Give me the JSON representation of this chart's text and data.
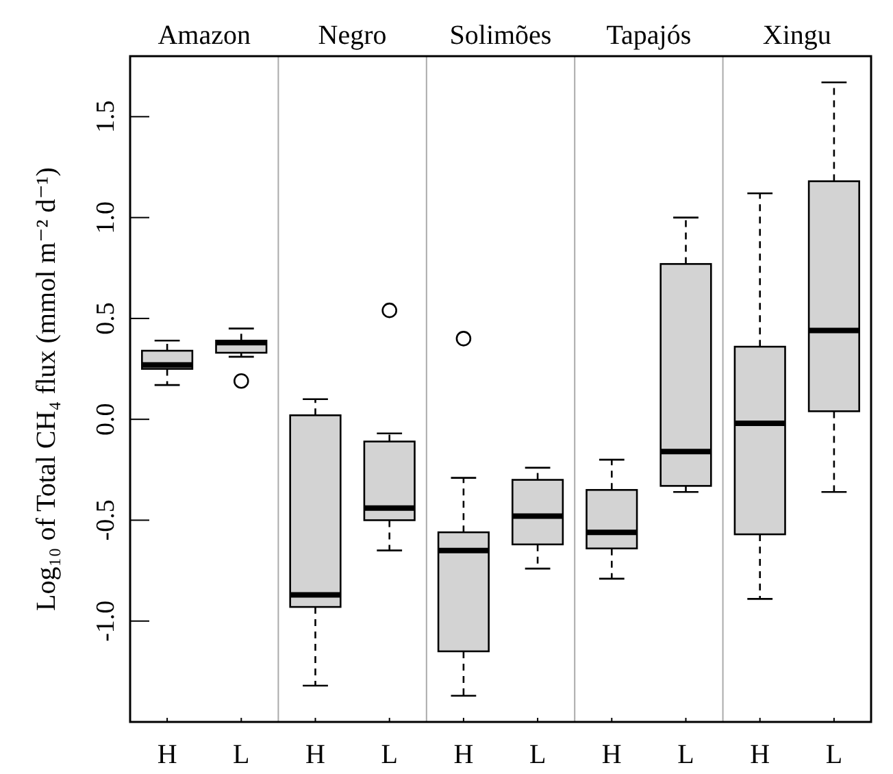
{
  "chart_data": {
    "type": "box",
    "ylabel": "Log₁₀ of Total CH₄ flux (mmol m⁻² d⁻¹)",
    "categories": [
      "H",
      "L",
      "H",
      "L",
      "H",
      "L",
      "H",
      "L",
      "H",
      "L"
    ],
    "annotations": [
      "Amazon",
      "Negro",
      "Solimões",
      "Tapajós",
      "Xingu"
    ],
    "color": "#d3d3d3",
    "ylim": [
      -1.5,
      1.8
    ],
    "yticks": [
      {
        "value": -1,
        "label": "-1.0"
      },
      {
        "value": -0.5,
        "label": "-0.5"
      },
      {
        "value": 0,
        "label": "0.0"
      },
      {
        "value": 0.5,
        "label": "0.5"
      },
      {
        "value": 1,
        "label": "1.0"
      },
      {
        "value": 1.5,
        "label": "1.5"
      }
    ],
    "grid": false,
    "boxes": [
      {
        "low": 0.17,
        "q1": 0.25,
        "median": 0.27,
        "q3": 0.34,
        "high": 0.39
      },
      {
        "low": 0.31,
        "q1": 0.33,
        "median": 0.38,
        "q3": 0.39,
        "high": 0.45,
        "outliers": [
          0.19
        ]
      },
      {
        "low": -1.32,
        "q1": -0.93,
        "median": -0.87,
        "q3": 0.02,
        "high": 0.1
      },
      {
        "low": -0.65,
        "q1": -0.5,
        "median": -0.44,
        "q3": -0.11,
        "high": -0.07,
        "outliers": [
          0.54
        ]
      },
      {
        "low": -1.37,
        "q1": -1.15,
        "median": -0.65,
        "q3": -0.56,
        "high": -0.29,
        "outliers": [
          0.4
        ]
      },
      {
        "low": -0.74,
        "q1": -0.62,
        "median": -0.48,
        "q3": -0.3,
        "high": -0.24
      },
      {
        "low": -0.79,
        "q1": -0.64,
        "median": -0.56,
        "q3": -0.35,
        "high": -0.2
      },
      {
        "low": -0.36,
        "q1": -0.33,
        "median": -0.16,
        "q3": 0.77,
        "high": 1.0
      },
      {
        "low": -0.89,
        "q1": -0.57,
        "median": -0.02,
        "q3": 0.36,
        "high": 1.12
      },
      {
        "low": -0.36,
        "q1": 0.04,
        "median": 0.44,
        "q3": 1.18,
        "high": 1.67
      }
    ]
  }
}
